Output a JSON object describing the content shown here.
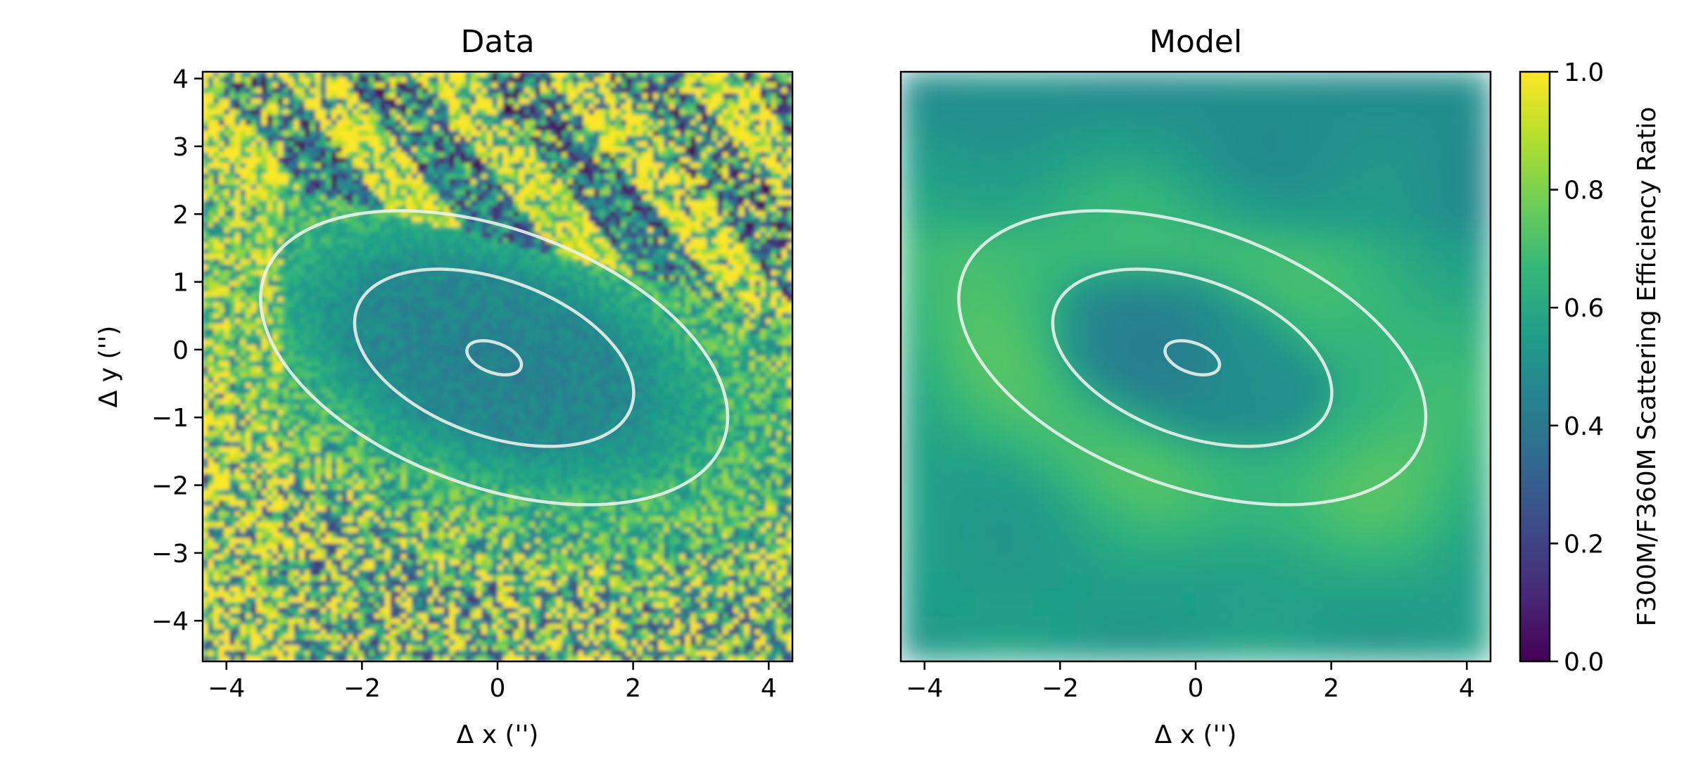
{
  "chart_data": [
    {
      "type": "heatmap",
      "title": "Data",
      "xlabel": "Δ x ('')",
      "ylabel": "Δ y ('')",
      "xlim": [
        -4.35,
        4.35
      ],
      "ylim": [
        -4.6,
        4.1
      ],
      "xticks": [
        -4,
        -2,
        0,
        2,
        4
      ],
      "xtick_labels": [
        "−4",
        "−2",
        "0",
        "2",
        "4"
      ],
      "yticks": [
        4,
        3,
        2,
        1,
        0,
        -1,
        -2,
        -3,
        -4
      ],
      "ytick_labels": [
        "4",
        "3",
        "2",
        "1",
        "0",
        "−1",
        "−2",
        "−3",
        "−4"
      ],
      "colormap": "viridis",
      "value_range": [
        0,
        1
      ],
      "contours": [
        {
          "level": "inner",
          "center": [
            -0.05,
            -0.12
          ],
          "semi_axes": [
            0.42,
            0.22
          ],
          "angle_deg": -20
        },
        {
          "level": "middle",
          "center": [
            -0.05,
            -0.12
          ],
          "semi_axes": [
            2.15,
            1.15
          ],
          "angle_deg": -20
        },
        {
          "level": "outer",
          "center": [
            -0.05,
            -0.12
          ],
          "semi_axes": [
            3.6,
            1.9
          ],
          "angle_deg": -20
        }
      ]
    },
    {
      "type": "heatmap",
      "title": "Model",
      "xlabel": "Δ x ('')",
      "xlim": [
        -4.35,
        4.35
      ],
      "ylim": [
        -4.6,
        4.1
      ],
      "xticks": [
        -4,
        -2,
        0,
        2,
        4
      ],
      "xtick_labels": [
        "−4",
        "−2",
        "0",
        "2",
        "4"
      ],
      "colormap": "viridis",
      "value_range": [
        0,
        1
      ],
      "contours": [
        {
          "level": "inner",
          "center": [
            -0.05,
            -0.12
          ],
          "semi_axes": [
            0.42,
            0.22
          ],
          "angle_deg": -20
        },
        {
          "level": "middle",
          "center": [
            -0.05,
            -0.12
          ],
          "semi_axes": [
            2.15,
            1.15
          ],
          "angle_deg": -20
        },
        {
          "level": "outer",
          "center": [
            -0.05,
            -0.12
          ],
          "semi_axes": [
            3.6,
            1.9
          ],
          "angle_deg": -20
        }
      ]
    }
  ],
  "colorbar": {
    "label": "F300M/F360M Scattering Efficiency Ratio",
    "ticks": [
      1.0,
      0.8,
      0.6,
      0.4,
      0.2,
      0.0
    ],
    "tick_labels": [
      "1.0",
      "0.8",
      "0.6",
      "0.4",
      "0.2",
      "0.0"
    ],
    "range": [
      0,
      1
    ],
    "colors": [
      "#440154",
      "#482878",
      "#3e4989",
      "#31688e",
      "#26828e",
      "#1f9e89",
      "#35b779",
      "#6ece58",
      "#b5de2b",
      "#fde725"
    ]
  }
}
